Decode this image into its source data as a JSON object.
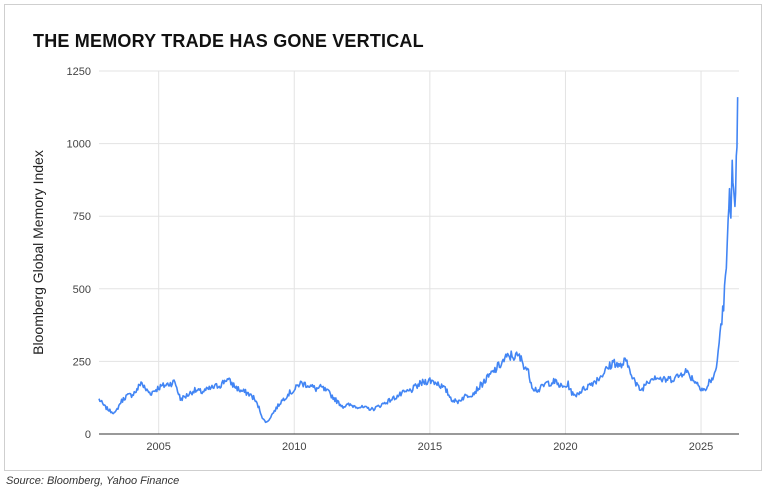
{
  "source": "Source: Bloomberg, Yahoo Finance",
  "colors": {
    "line": "#4285f4",
    "grid": "#e3e3e3",
    "axis": "#333333",
    "border": "#cfcfcf"
  },
  "chart_data": {
    "type": "line",
    "title": "THE MEMORY TRADE HAS GONE VERTICAL",
    "xlabel": "",
    "ylabel": "Bloomberg Global Memory Index",
    "xlim": [
      2002.8,
      2026.4
    ],
    "ylim": [
      0,
      1250
    ],
    "x_ticks": [
      2005,
      2010,
      2015,
      2020,
      2025
    ],
    "x_tick_labels": [
      "2005",
      "2010",
      "2015",
      "2020",
      "2025"
    ],
    "y_ticks": [
      0,
      250,
      500,
      750,
      1000,
      1250
    ],
    "y_tick_labels": [
      "0",
      "250",
      "500",
      "750",
      "1000",
      "1250"
    ],
    "grid": true,
    "legend": "none",
    "series": [
      {
        "x": [
          2002.8,
          2003.0,
          2003.2,
          2003.4,
          2003.6,
          2003.8,
          2004.0,
          2004.2,
          2004.35,
          2004.5,
          2004.7,
          2005.0,
          2005.3,
          2005.6,
          2005.8,
          2006.0,
          2006.3,
          2006.6,
          2007.0,
          2007.3,
          2007.5,
          2007.8,
          2008.0,
          2008.3,
          2008.5,
          2008.7,
          2008.85,
          2009.0,
          2009.2,
          2009.5,
          2009.8,
          2010.0,
          2010.2,
          2010.5,
          2010.8,
          2011.0,
          2011.3,
          2011.6,
          2011.8,
          2012.0,
          2012.3,
          2012.6,
          2012.9,
          2013.2,
          2013.5,
          2013.8,
          2014.0,
          2014.3,
          2014.6,
          2014.8,
          2015.0,
          2015.3,
          2015.6,
          2015.8,
          2016.0,
          2016.3,
          2016.6,
          2016.9,
          2017.2,
          2017.5,
          2017.8,
          2018.0,
          2018.3,
          2018.6,
          2018.8,
          2019.0,
          2019.3,
          2019.6,
          2019.9,
          2020.1,
          2020.3,
          2020.6,
          2020.9,
          2021.2,
          2021.5,
          2021.8,
          2022.0,
          2022.2,
          2022.4,
          2022.6,
          2022.8,
          2023.0,
          2023.3,
          2023.6,
          2023.9,
          2024.2,
          2024.4,
          2024.6,
          2024.8,
          2025.0,
          2025.2,
          2025.3,
          2025.5,
          2025.6,
          2025.7,
          2025.8,
          2025.9,
          2026.0,
          2026.05,
          2026.1,
          2026.15,
          2026.2,
          2026.25,
          2026.3,
          2026.35
        ],
        "values": [
          120,
          95,
          80,
          72,
          110,
          130,
          135,
          150,
          180,
          155,
          140,
          160,
          170,
          180,
          120,
          130,
          150,
          145,
          160,
          170,
          190,
          165,
          150,
          140,
          125,
          90,
          50,
          40,
          70,
          110,
          140,
          150,
          175,
          170,
          155,
          160,
          140,
          110,
          95,
          100,
          95,
          90,
          85,
          100,
          115,
          130,
          140,
          150,
          170,
          180,
          185,
          175,
          150,
          120,
          110,
          130,
          140,
          170,
          200,
          230,
          260,
          270,
          265,
          220,
          160,
          150,
          175,
          180,
          160,
          170,
          130,
          150,
          170,
          190,
          220,
          250,
          230,
          250,
          220,
          170,
          150,
          180,
          200,
          185,
          190,
          200,
          220,
          200,
          180,
          160,
          150,
          180,
          200,
          250,
          350,
          420,
          520,
          700,
          860,
          790,
          900,
          800,
          740,
          900,
          1160
        ]
      }
    ]
  }
}
